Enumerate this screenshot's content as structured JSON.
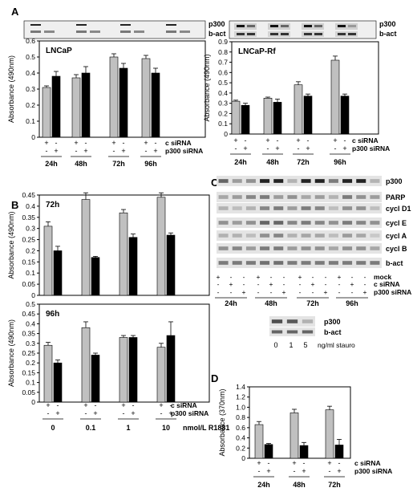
{
  "chart_data": [
    {
      "panel": "A",
      "type": "bar",
      "inner_label": "LNCaP",
      "ylabel": "Absorbance (490nm)",
      "ylim": [
        0,
        0.6
      ],
      "yticks": [
        "0",
        "0.1",
        "0.2",
        "0.3",
        "0.4",
        "0.5",
        "0.6"
      ],
      "categories": [
        "24h",
        "48h",
        "72h",
        "96h"
      ],
      "series": [
        {
          "values": [
            0.31,
            0.37,
            0.5,
            0.49
          ],
          "errors": [
            0.01,
            0.02,
            0.02,
            0.02
          ],
          "color": "#c0c0c0"
        },
        {
          "values": [
            0.38,
            0.4,
            0.43,
            0.4
          ],
          "errors": [
            0.03,
            0.04,
            0.03,
            0.03
          ],
          "color": "#000000"
        }
      ],
      "row_labels": [
        "c siRNA",
        "p300 siRNA"
      ],
      "row1_signs": [
        "+",
        "-"
      ],
      "row2_signs": [
        "-",
        "+"
      ],
      "blot_labels": [
        "p300",
        "b-act"
      ]
    },
    {
      "panel": "",
      "type": "bar",
      "inner_label": "LNCaP-Rf",
      "ylabel": "Absorbance (490nm)",
      "ylim": [
        0,
        0.9
      ],
      "yticks": [
        "0",
        "0.1",
        "0.2",
        "0.3",
        "0.4",
        "0.5",
        "0.6",
        "0.7",
        "0.8",
        "0.9"
      ],
      "categories": [
        "24h",
        "48h",
        "72h",
        "96h"
      ],
      "series": [
        {
          "values": [
            0.32,
            0.35,
            0.48,
            0.72
          ],
          "errors": [
            0.01,
            0.01,
            0.03,
            0.04
          ],
          "color": "#c0c0c0"
        },
        {
          "values": [
            0.28,
            0.31,
            0.37,
            0.37
          ],
          "errors": [
            0.02,
            0.03,
            0.02,
            0.02
          ],
          "color": "#000000"
        }
      ],
      "row_labels": [
        "c siRNA",
        "p300 siRNA"
      ],
      "row1_signs": [
        "+",
        "-"
      ],
      "row2_signs": [
        "-",
        "+"
      ],
      "blot_labels": [
        "p300",
        "b-act"
      ]
    },
    {
      "panel": "B",
      "type": "bar",
      "inner_label": "72h",
      "ylabel": "Absorbance (490nm)",
      "ylim": [
        0,
        0.45
      ],
      "yticks": [
        "0",
        "0.05",
        "0.1",
        "0.15",
        "0.2",
        "0.25",
        "0.3",
        "0.35",
        "0.4",
        "0.45"
      ],
      "series": [
        {
          "values": [
            0.31,
            0.43,
            0.37,
            0.44
          ],
          "errors": [
            0.02,
            0.03,
            0.015,
            0.02
          ],
          "color": "#c0c0c0"
        },
        {
          "values": [
            0.2,
            0.17,
            0.26,
            0.27
          ],
          "errors": [
            0.02,
            0.005,
            0.015,
            0.01
          ],
          "color": "#000000"
        }
      ]
    },
    {
      "panel": "",
      "type": "bar",
      "inner_label": "96h",
      "ylabel": "Absorbance (490nm)",
      "ylim": [
        0,
        0.5
      ],
      "yticks": [
        "0",
        "0.05",
        "0.1",
        "0.15",
        "0.2",
        "0.25",
        "0.3",
        "0.35",
        "0.4",
        "0.45",
        "0.5"
      ],
      "categories": [
        "0",
        "0.1",
        "1",
        "10"
      ],
      "xunit": "nmol/L R1881",
      "series": [
        {
          "values": [
            0.29,
            0.38,
            0.33,
            0.28
          ],
          "errors": [
            0.015,
            0.03,
            0.01,
            0.02
          ],
          "color": "#c0c0c0"
        },
        {
          "values": [
            0.2,
            0.24,
            0.33,
            0.34
          ],
          "errors": [
            0.015,
            0.01,
            0.01,
            0.07
          ],
          "color": "#000000"
        }
      ],
      "row_labels": [
        "c siRNA",
        "p300 siRNA"
      ],
      "row1_signs": [
        "+",
        "-"
      ],
      "row2_signs": [
        "-",
        "+"
      ]
    },
    {
      "panel": "C",
      "type": "blot",
      "bands": [
        "p300",
        "PARP",
        "cycl D1",
        "cycl E",
        "cycl A",
        "cycl B",
        "b-act"
      ],
      "row_labels": [
        "mock",
        "c siRNA",
        "p300 siRNA"
      ],
      "row_signs": [
        [
          "+",
          "-",
          "-"
        ],
        [
          "-",
          "+",
          "-"
        ],
        [
          "-",
          "-",
          "+"
        ]
      ],
      "categories": [
        "24h",
        "48h",
        "72h",
        "96h"
      ],
      "stauro": {
        "bands": [
          "p300",
          "b-act"
        ],
        "doses": [
          "0",
          "1",
          "5"
        ],
        "unit": "ng/ml stauro"
      }
    },
    {
      "panel": "D",
      "type": "bar",
      "ylabel": "Absorbance (370nm)",
      "ylim": [
        0,
        1.4
      ],
      "yticks": [
        "0",
        "0.2",
        "0.4",
        "0.6",
        "0.8",
        "1.0",
        "1.2",
        "1.4"
      ],
      "categories": [
        "24h",
        "48h",
        "72h"
      ],
      "series": [
        {
          "values": [
            0.66,
            0.89,
            0.95
          ],
          "errors": [
            0.06,
            0.07,
            0.07
          ],
          "color": "#c0c0c0"
        },
        {
          "values": [
            0.27,
            0.25,
            0.26
          ],
          "errors": [
            0.02,
            0.06,
            0.11
          ],
          "color": "#000000"
        }
      ],
      "row_labels": [
        "c siRNA",
        "p300 siRNA"
      ],
      "row1_signs": [
        "+",
        "-"
      ],
      "row2_signs": [
        "-",
        "+"
      ]
    }
  ]
}
